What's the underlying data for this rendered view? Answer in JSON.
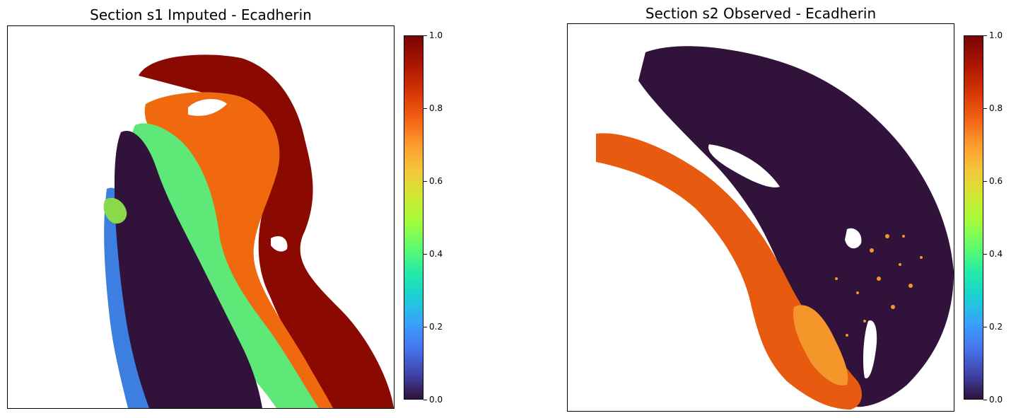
{
  "chart_data": [
    {
      "type": "heatmap",
      "title": "Section s1 Imputed - Ecadherin",
      "colormap": "turbo",
      "colorbar": {
        "range": [
          0.0,
          1.0
        ],
        "ticks": [
          "0.0",
          "0.2",
          "0.4",
          "0.6",
          "0.8",
          "1.0"
        ]
      },
      "grid": false,
      "axes_ticks": false
    },
    {
      "type": "heatmap",
      "title": "Section s2 Observed - Ecadherin",
      "colormap": "turbo",
      "colorbar": {
        "range": [
          0.0,
          1.0
        ],
        "ticks": [
          "0.0",
          "0.2",
          "0.4",
          "0.6",
          "0.8",
          "1.0"
        ]
      },
      "grid": false,
      "axes_ticks": false
    }
  ],
  "colors": {
    "low": "#30123b",
    "mid": "#a4fc3b",
    "high": "#7a0403",
    "orange": "#f36315",
    "cyan": "#1bcfd4",
    "blue": "#4145ab"
  }
}
